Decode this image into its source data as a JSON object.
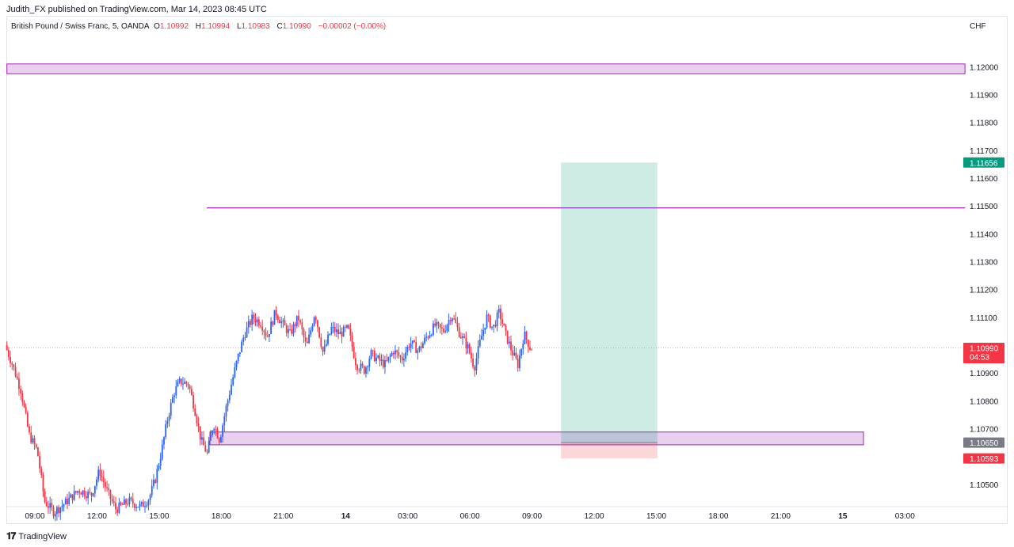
{
  "header": {
    "publisher_line": "Judith_FX published on TradingView.com, Mar 14, 2023 08:45 UTC"
  },
  "symbol": {
    "description": "British Pound / Swiss Franc, 5, OANDA",
    "open": "1.10992",
    "high": "1.10994",
    "low": "1.10983",
    "close": "1.10990",
    "change": "−0.00002 (−0.00%)"
  },
  "footer": {
    "brand": "TradingView",
    "logo_icon": "tradingview-logo-icon"
  },
  "colors": {
    "up": "#2962ff",
    "down": "#f23645",
    "zone": "#9c27b0",
    "target": "#089981",
    "stop": "#f23645",
    "price": "#f23645",
    "entry_tag": "#787b86"
  },
  "chart_data": {
    "type": "candlestick",
    "currency": "CHF",
    "ylim": [
      1.1042,
      1.1218
    ],
    "y_ticks": [
      "1.12000",
      "1.11900",
      "1.11800",
      "1.11700",
      "1.11600",
      "1.11500",
      "1.11400",
      "1.11300",
      "1.11200",
      "1.11100",
      "1.10900",
      "1.10800",
      "1.10700",
      "1.10500"
    ],
    "x_ticks": [
      {
        "label": "09:00",
        "hour": 0
      },
      {
        "label": "12:00",
        "hour": 3
      },
      {
        "label": "15:00",
        "hour": 6
      },
      {
        "label": "18:00",
        "hour": 9
      },
      {
        "label": "21:00",
        "hour": 12
      },
      {
        "label": "14",
        "hour": 15,
        "bold": true
      },
      {
        "label": "03:00",
        "hour": 18
      },
      {
        "label": "06:00",
        "hour": 21
      },
      {
        "label": "09:00",
        "hour": 24
      },
      {
        "label": "12:00",
        "hour": 27
      },
      {
        "label": "15:00",
        "hour": 30
      },
      {
        "label": "18:00",
        "hour": 33
      },
      {
        "label": "21:00",
        "hour": 36
      },
      {
        "label": "15",
        "hour": 39,
        "bold": true
      },
      {
        "label": "03:00",
        "hour": 42
      }
    ],
    "price_path": [
      [
        -1.35,
        1.11
      ],
      [
        -1.0,
        1.1093
      ],
      [
        -0.6,
        1.1084
      ],
      [
        -0.2,
        1.1068
      ],
      [
        0.2,
        1.1062
      ],
      [
        0.55,
        1.1044
      ],
      [
        1.0,
        1.104
      ],
      [
        1.5,
        1.1043
      ],
      [
        2.2,
        1.1048
      ],
      [
        2.8,
        1.1046
      ],
      [
        3.2,
        1.1055
      ],
      [
        3.6,
        1.1047
      ],
      [
        4.0,
        1.1041
      ],
      [
        4.6,
        1.1044
      ],
      [
        5.2,
        1.1042
      ],
      [
        5.6,
        1.1045
      ],
      [
        5.9,
        1.1052
      ],
      [
        6.2,
        1.1062
      ],
      [
        6.5,
        1.1074
      ],
      [
        6.8,
        1.1083
      ],
      [
        7.1,
        1.1087
      ],
      [
        7.5,
        1.1086
      ],
      [
        7.8,
        1.1077
      ],
      [
        8.1,
        1.1066
      ],
      [
        8.4,
        1.1061
      ],
      [
        8.7,
        1.1072
      ],
      [
        9.0,
        1.1066
      ],
      [
        9.3,
        1.1077
      ],
      [
        9.6,
        1.1087
      ],
      [
        9.9,
        1.1096
      ],
      [
        10.2,
        1.1104
      ],
      [
        10.6,
        1.111
      ],
      [
        11.0,
        1.1108
      ],
      [
        11.3,
        1.1103
      ],
      [
        11.7,
        1.1112
      ],
      [
        12.0,
        1.1108
      ],
      [
        12.4,
        1.1104
      ],
      [
        12.8,
        1.111
      ],
      [
        13.2,
        1.1099
      ],
      [
        13.6,
        1.1112
      ],
      [
        14.0,
        1.1097
      ],
      [
        14.4,
        1.1106
      ],
      [
        14.8,
        1.1104
      ],
      [
        15.2,
        1.1106
      ],
      [
        15.6,
        1.1093
      ],
      [
        16.0,
        1.1091
      ],
      [
        16.3,
        1.1097
      ],
      [
        16.6,
        1.1095
      ],
      [
        17.0,
        1.1093
      ],
      [
        17.4,
        1.1098
      ],
      [
        17.8,
        1.1095
      ],
      [
        18.2,
        1.1101
      ],
      [
        18.6,
        1.1098
      ],
      [
        19.0,
        1.1103
      ],
      [
        19.4,
        1.1107
      ],
      [
        19.8,
        1.1105
      ],
      [
        20.2,
        1.1111
      ],
      [
        20.6,
        1.1104
      ],
      [
        21.0,
        1.1099
      ],
      [
        21.3,
        1.1092
      ],
      [
        21.6,
        1.1102
      ],
      [
        21.9,
        1.111
      ],
      [
        22.2,
        1.1106
      ],
      [
        22.5,
        1.1112
      ],
      [
        22.8,
        1.1104
      ],
      [
        23.1,
        1.1098
      ],
      [
        23.4,
        1.1093
      ],
      [
        23.7,
        1.1104
      ],
      [
        24.0,
        1.1099
      ]
    ],
    "zones": [
      {
        "name": "supply-zone",
        "y_top": 1.1201,
        "y_bottom": 1.11975,
        "x_start_hour": -1.35,
        "x_end_hour": 44.9
      },
      {
        "name": "demand-zone",
        "y_top": 1.10688,
        "y_bottom": 1.10642,
        "x_start_hour": 8.45,
        "x_end_hour": 40.0
      }
    ],
    "h_line": {
      "name": "resistance-line",
      "y": 1.11493,
      "x_start_hour": 8.3,
      "x_end_hour": 44.9
    },
    "position": {
      "entry": 1.1065,
      "target": 1.11656,
      "stop": 1.10593,
      "x_start_hour": 25.4,
      "x_end_hour": 30.05
    },
    "last_price": {
      "value": "1.10990",
      "countdown": "04:53"
    },
    "labels": {
      "target": "1.11656",
      "entry": "1.10650",
      "stop": "1.10593"
    }
  }
}
